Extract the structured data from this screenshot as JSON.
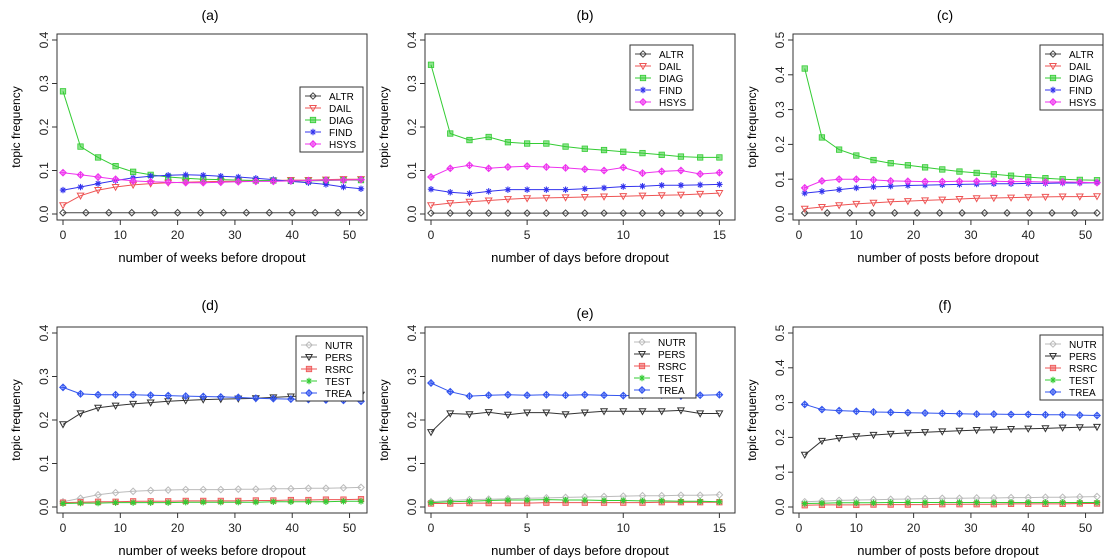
{
  "chart_data": [
    {
      "panel_label": "(a)",
      "type": "line",
      "xlabel": "number of weeks before dropout",
      "ylabel": "topic frequency",
      "xlim": [
        0,
        52
      ],
      "ylim": [
        0,
        0.4
      ],
      "xticks": [
        0,
        10,
        20,
        30,
        40,
        50
      ],
      "yticks": [
        0.0,
        0.1,
        0.2,
        0.3,
        0.4
      ],
      "x_range": [
        0,
        52
      ],
      "legend_position": "right",
      "series": [
        {
          "name": "ALTR",
          "color": "#444444",
          "marker": "diamond",
          "values": [
            0.003,
            0.003,
            0.003,
            0.003,
            0.003,
            0.003,
            0.003,
            0.003,
            0.003,
            0.003,
            0.003,
            0.003,
            0.003,
            0.003
          ]
        },
        {
          "name": "DAIL",
          "color": "#ee5555",
          "marker": "triangle-down",
          "values": [
            0.02,
            0.042,
            0.055,
            0.062,
            0.067,
            0.07,
            0.072,
            0.073,
            0.074,
            0.075,
            0.075,
            0.076,
            0.077,
            0.078,
            0.078,
            0.079,
            0.08,
            0.08
          ]
        },
        {
          "name": "DIAG",
          "color": "#33cc33",
          "marker": "square",
          "values": [
            0.282,
            0.155,
            0.13,
            0.11,
            0.097,
            0.09,
            0.085,
            0.082,
            0.08,
            0.079,
            0.078,
            0.077,
            0.077,
            0.076,
            0.076,
            0.077,
            0.078,
            0.078
          ]
        },
        {
          "name": "FIND",
          "color": "#3333ee",
          "marker": "asterisk",
          "values": [
            0.055,
            0.062,
            0.07,
            0.077,
            0.083,
            0.087,
            0.089,
            0.09,
            0.089,
            0.087,
            0.085,
            0.082,
            0.079,
            0.075,
            0.072,
            0.068,
            0.062,
            0.058
          ]
        },
        {
          "name": "HSYS",
          "color": "#ee33ee",
          "marker": "diamond-plus",
          "values": [
            0.095,
            0.09,
            0.085,
            0.08,
            0.076,
            0.074,
            0.073,
            0.072,
            0.072,
            0.073,
            0.074,
            0.075,
            0.075,
            0.076,
            0.077,
            0.078,
            0.078,
            0.079
          ]
        }
      ]
    },
    {
      "panel_label": "(b)",
      "type": "line",
      "xlabel": "number of days before dropout",
      "ylabel": "topic frequency",
      "xlim": [
        0,
        15.5
      ],
      "ylim": [
        0,
        0.4
      ],
      "xticks": [
        0,
        5,
        10,
        15
      ],
      "yticks": [
        0.0,
        0.1,
        0.2,
        0.3,
        0.4
      ],
      "x_range": [
        0,
        15
      ],
      "legend_position": "top-right",
      "series": [
        {
          "name": "ALTR",
          "color": "#444444",
          "marker": "diamond",
          "values": [
            0.002,
            0.002,
            0.002,
            0.002,
            0.002,
            0.002,
            0.002,
            0.002,
            0.002,
            0.002,
            0.002,
            0.002,
            0.002,
            0.002,
            0.002,
            0.002
          ]
        },
        {
          "name": "DAIL",
          "color": "#ee5555",
          "marker": "triangle-down",
          "values": [
            0.02,
            0.025,
            0.028,
            0.031,
            0.034,
            0.036,
            0.037,
            0.038,
            0.039,
            0.04,
            0.041,
            0.042,
            0.043,
            0.044,
            0.046,
            0.048
          ]
        },
        {
          "name": "DIAG",
          "color": "#33cc33",
          "marker": "square",
          "values": [
            0.343,
            0.185,
            0.17,
            0.177,
            0.165,
            0.162,
            0.162,
            0.155,
            0.15,
            0.147,
            0.143,
            0.14,
            0.136,
            0.132,
            0.13,
            0.13
          ]
        },
        {
          "name": "FIND",
          "color": "#3333ee",
          "marker": "asterisk",
          "values": [
            0.057,
            0.05,
            0.047,
            0.052,
            0.056,
            0.056,
            0.056,
            0.056,
            0.058,
            0.06,
            0.063,
            0.064,
            0.066,
            0.066,
            0.067,
            0.068
          ]
        },
        {
          "name": "HSYS",
          "color": "#ee33ee",
          "marker": "diamond-plus",
          "values": [
            0.085,
            0.105,
            0.112,
            0.105,
            0.108,
            0.11,
            0.108,
            0.106,
            0.103,
            0.1,
            0.107,
            0.094,
            0.098,
            0.1,
            0.092,
            0.095
          ]
        }
      ]
    },
    {
      "panel_label": "(c)",
      "type": "line",
      "xlabel": "number of posts before dropout",
      "ylabel": "topic frequency",
      "xlim": [
        0,
        52
      ],
      "ylim": [
        0,
        0.5
      ],
      "xticks": [
        0,
        10,
        20,
        30,
        40,
        50
      ],
      "yticks": [
        0.0,
        0.1,
        0.2,
        0.3,
        0.4,
        0.5
      ],
      "x_range": [
        1,
        52
      ],
      "legend_position": "top-right",
      "series": [
        {
          "name": "ALTR",
          "color": "#444444",
          "marker": "diamond",
          "values": [
            0.003,
            0.003,
            0.003,
            0.003,
            0.003,
            0.003,
            0.003,
            0.003,
            0.003,
            0.003,
            0.003,
            0.003,
            0.003,
            0.003
          ]
        },
        {
          "name": "DAIL",
          "color": "#ee5555",
          "marker": "triangle-down",
          "values": [
            0.015,
            0.02,
            0.025,
            0.029,
            0.032,
            0.035,
            0.037,
            0.039,
            0.041,
            0.043,
            0.045,
            0.046,
            0.047,
            0.048,
            0.049,
            0.05,
            0.05,
            0.051
          ]
        },
        {
          "name": "DIAG",
          "color": "#33cc33",
          "marker": "square",
          "values": [
            0.418,
            0.22,
            0.185,
            0.168,
            0.155,
            0.146,
            0.14,
            0.134,
            0.128,
            0.122,
            0.118,
            0.114,
            0.11,
            0.106,
            0.103,
            0.1,
            0.098,
            0.097
          ]
        },
        {
          "name": "FIND",
          "color": "#3333ee",
          "marker": "asterisk",
          "values": [
            0.06,
            0.065,
            0.07,
            0.075,
            0.078,
            0.08,
            0.082,
            0.083,
            0.084,
            0.085,
            0.086,
            0.087,
            0.087,
            0.088,
            0.088,
            0.089,
            0.089,
            0.09
          ]
        },
        {
          "name": "HSYS",
          "color": "#ee33ee",
          "marker": "diamond-plus",
          "values": [
            0.075,
            0.095,
            0.1,
            0.1,
            0.098,
            0.095,
            0.094,
            0.093,
            0.093,
            0.094,
            0.094,
            0.094,
            0.093,
            0.093,
            0.092,
            0.092,
            0.091,
            0.09
          ]
        }
      ]
    },
    {
      "panel_label": "(d)",
      "type": "line",
      "xlabel": "number of weeks before dropout",
      "ylabel": "topic frequency",
      "xlim": [
        0,
        52
      ],
      "ylim": [
        0,
        0.4
      ],
      "xticks": [
        0,
        10,
        20,
        30,
        40,
        50
      ],
      "yticks": [
        0.0,
        0.1,
        0.2,
        0.3,
        0.4
      ],
      "x_range": [
        0,
        52
      ],
      "legend_position": "top-right",
      "series": [
        {
          "name": "NUTR",
          "color": "#bbbbbb",
          "marker": "diamond",
          "values": [
            0.012,
            0.02,
            0.028,
            0.033,
            0.036,
            0.038,
            0.039,
            0.04,
            0.04,
            0.04,
            0.041,
            0.041,
            0.042,
            0.042,
            0.043,
            0.043,
            0.044,
            0.045
          ]
        },
        {
          "name": "PERS",
          "color": "#333333",
          "marker": "triangle-down",
          "values": [
            0.19,
            0.215,
            0.228,
            0.233,
            0.237,
            0.24,
            0.243,
            0.245,
            0.247,
            0.248,
            0.249,
            0.25,
            0.252,
            0.254,
            0.256,
            0.258,
            0.258,
            0.258
          ]
        },
        {
          "name": "RSRC",
          "color": "#ee5555",
          "marker": "square",
          "values": [
            0.01,
            0.011,
            0.012,
            0.012,
            0.013,
            0.013,
            0.013,
            0.014,
            0.014,
            0.014,
            0.014,
            0.015,
            0.015,
            0.016,
            0.016,
            0.017,
            0.017,
            0.018
          ]
        },
        {
          "name": "TEST",
          "color": "#33cc33",
          "marker": "asterisk",
          "values": [
            0.008,
            0.009,
            0.009,
            0.01,
            0.01,
            0.01,
            0.01,
            0.011,
            0.011,
            0.011,
            0.011,
            0.011,
            0.012,
            0.012,
            0.012,
            0.012,
            0.013,
            0.013
          ]
        },
        {
          "name": "TREA",
          "color": "#3355ee",
          "marker": "diamond-plus",
          "values": [
            0.275,
            0.26,
            0.258,
            0.258,
            0.258,
            0.257,
            0.256,
            0.255,
            0.254,
            0.253,
            0.252,
            0.25,
            0.249,
            0.248,
            0.247,
            0.246,
            0.245,
            0.243
          ]
        }
      ]
    },
    {
      "panel_label": "(e)",
      "type": "line",
      "xlabel": "number of days before dropout",
      "ylabel": "topic frequency",
      "xlim": [
        0,
        15.5
      ],
      "ylim": [
        0,
        0.4
      ],
      "xticks": [
        0,
        5,
        10,
        15
      ],
      "yticks": [
        0.0,
        0.1,
        0.2,
        0.3,
        0.4
      ],
      "x_range": [
        0,
        15
      ],
      "legend_position": "top-right",
      "series": [
        {
          "name": "NUTR",
          "color": "#bbbbbb",
          "marker": "diamond",
          "values": [
            0.012,
            0.015,
            0.017,
            0.018,
            0.019,
            0.02,
            0.021,
            0.022,
            0.023,
            0.024,
            0.025,
            0.026,
            0.026,
            0.027,
            0.027,
            0.028
          ]
        },
        {
          "name": "PERS",
          "color": "#333333",
          "marker": "triangle-down",
          "values": [
            0.172,
            0.215,
            0.213,
            0.218,
            0.212,
            0.217,
            0.217,
            0.213,
            0.217,
            0.22,
            0.22,
            0.22,
            0.22,
            0.222,
            0.215,
            0.215
          ]
        },
        {
          "name": "RSRC",
          "color": "#ee5555",
          "marker": "square",
          "values": [
            0.008,
            0.008,
            0.009,
            0.009,
            0.009,
            0.009,
            0.01,
            0.01,
            0.01,
            0.01,
            0.01,
            0.01,
            0.011,
            0.011,
            0.011,
            0.011
          ]
        },
        {
          "name": "TEST",
          "color": "#33cc33",
          "marker": "asterisk",
          "values": [
            0.01,
            0.012,
            0.013,
            0.015,
            0.016,
            0.016,
            0.017,
            0.016,
            0.016,
            0.015,
            0.015,
            0.014,
            0.014,
            0.013,
            0.013,
            0.012
          ]
        },
        {
          "name": "TREA",
          "color": "#3355ee",
          "marker": "diamond-plus",
          "values": [
            0.285,
            0.265,
            0.255,
            0.257,
            0.258,
            0.257,
            0.258,
            0.257,
            0.258,
            0.257,
            0.256,
            0.257,
            0.257,
            0.255,
            0.257,
            0.258
          ]
        }
      ]
    },
    {
      "panel_label": "(f)",
      "type": "line",
      "xlabel": "number of posts before dropout",
      "ylabel": "topic frequency",
      "xlim": [
        0,
        52
      ],
      "ylim": [
        0,
        0.5
      ],
      "xticks": [
        0,
        10,
        20,
        30,
        40,
        50
      ],
      "yticks": [
        0.0,
        0.1,
        0.2,
        0.3,
        0.4,
        0.5
      ],
      "x_range": [
        1,
        52
      ],
      "legend_position": "top-right",
      "series": [
        {
          "name": "NUTR",
          "color": "#bbbbbb",
          "marker": "diamond",
          "values": [
            0.015,
            0.017,
            0.019,
            0.02,
            0.021,
            0.022,
            0.023,
            0.024,
            0.025,
            0.025,
            0.026,
            0.026,
            0.027,
            0.027,
            0.028,
            0.028,
            0.029,
            0.03
          ]
        },
        {
          "name": "PERS",
          "color": "#333333",
          "marker": "triangle-down",
          "values": [
            0.15,
            0.19,
            0.198,
            0.203,
            0.207,
            0.21,
            0.213,
            0.215,
            0.217,
            0.219,
            0.221,
            0.222,
            0.224,
            0.225,
            0.226,
            0.228,
            0.229,
            0.23
          ]
        },
        {
          "name": "RSRC",
          "color": "#ee5555",
          "marker": "square",
          "values": [
            0.005,
            0.006,
            0.006,
            0.006,
            0.007,
            0.007,
            0.007,
            0.007,
            0.008,
            0.008,
            0.008,
            0.008,
            0.009,
            0.009,
            0.009,
            0.009,
            0.01,
            0.01
          ]
        },
        {
          "name": "TEST",
          "color": "#33cc33",
          "marker": "asterisk",
          "values": [
            0.01,
            0.011,
            0.012,
            0.012,
            0.012,
            0.013,
            0.013,
            0.013,
            0.013,
            0.013,
            0.013,
            0.013,
            0.013,
            0.013,
            0.013,
            0.013,
            0.013,
            0.013
          ]
        },
        {
          "name": "TREA",
          "color": "#3355ee",
          "marker": "diamond-plus",
          "values": [
            0.295,
            0.28,
            0.277,
            0.275,
            0.273,
            0.272,
            0.271,
            0.27,
            0.269,
            0.268,
            0.267,
            0.267,
            0.266,
            0.266,
            0.265,
            0.265,
            0.264,
            0.263
          ]
        }
      ]
    }
  ]
}
